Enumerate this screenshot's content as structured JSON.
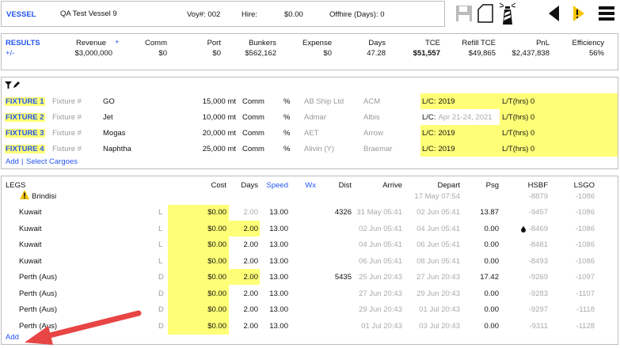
{
  "vessel": {
    "label": "VESSEL",
    "name": "QA Test Vessel 9",
    "voy": "Voy#: 002",
    "hire_label": "Hire:",
    "hire": "$0.00",
    "offhire": "Offhire (Days):  0"
  },
  "toolbar": {
    "icons": [
      "save-icon",
      "new-document-icon",
      "lighthouse-icon",
      "back-arrow-icon",
      "warning-next-icon",
      "menu-icon"
    ],
    "accent": "#f5c400"
  },
  "results": {
    "label": "RESULTS",
    "plusminus": "+/-",
    "cols": [
      {
        "h": "Revenue",
        "v": "$3,000,000"
      },
      {
        "h": "Comm",
        "v": "$0"
      },
      {
        "h": "Port",
        "v": "$0"
      },
      {
        "h": "Bunkers",
        "v": "$562,162"
      },
      {
        "h": "Expense",
        "v": "$0"
      },
      {
        "h": "Days",
        "v": "47.28"
      },
      {
        "h": "TCE",
        "v": "$51,557"
      },
      {
        "h": "Refill TCE",
        "v": "$49,865"
      },
      {
        "h": "PnL",
        "v": "$2,437,838"
      },
      {
        "h": "Efficiency",
        "v": "56%"
      }
    ],
    "revenue_plus": "+"
  },
  "fixtures": {
    "items": [
      {
        "label": "FIXTURE 1",
        "fixno": "Fixture #",
        "cargo": "GO",
        "qty": "15,000 mt",
        "comm": "Comm",
        "pct": "%",
        "charterer": "AB Ship Ltd",
        "broker": "ACM",
        "lc_label": "L/C:",
        "lc": "2019",
        "lt": "L/T(hrs)  0"
      },
      {
        "label": "FIXTURE 2",
        "fixno": "Fixture #",
        "cargo": "Jet",
        "qty": "10,000 mt",
        "comm": "Comm",
        "pct": "%",
        "charterer": "Admar",
        "broker": "Albis",
        "lc_label": "L/C:",
        "lc": "Apr 21-24, 2021",
        "lt": "L/T(hrs)  0"
      },
      {
        "label": "FIXTURE 3",
        "fixno": "Fixture #",
        "cargo": "Mogas",
        "qty": "20,000 mt",
        "comm": "Comm",
        "pct": "%",
        "charterer": "AET",
        "broker": "Arrow",
        "lc_label": "L/C:",
        "lc": "2019",
        "lt": "L/T(hrs)  0"
      },
      {
        "label": "FIXTURE 4",
        "fixno": "Fixture #",
        "cargo": "Naphtha",
        "qty": "25,000 mt",
        "comm": "Comm",
        "pct": "%",
        "charterer": "Alivin (Y)",
        "broker": "Braemar",
        "lc_label": "L/C:",
        "lc": "2019",
        "lt": "L/T(hrs)  0"
      }
    ],
    "add": "Add",
    "sep": "|",
    "select": "Select Cargoes"
  },
  "legs": {
    "title": "LEGS",
    "headers": {
      "cost": "Cost",
      "days": "Days",
      "speed": "Speed",
      "wx": "Wx",
      "dist": "Dist",
      "arrive": "Arrive",
      "depart": "Depart",
      "psg": "Psg",
      "hsbf": "HSBF",
      "lsgo": "LSGO"
    },
    "start": {
      "port": "Brindisi",
      "depart": "17 May 07:54",
      "hsbf": "-8879",
      "lsgo": "-1086"
    },
    "rows": [
      {
        "port": "Kuwait",
        "type": "L",
        "cost": "$0.00",
        "days": "2.00",
        "speed": "13.00",
        "dist": "4326",
        "arrive": "31 May 05:41",
        "depart": "02 Jun 05:41",
        "psg": "13.87",
        "hsbf": "-9457",
        "lsgo": "-1086"
      },
      {
        "port": "Kuwait",
        "type": "L",
        "cost": "$0.00",
        "days": "2.00",
        "speed": "13.00",
        "dist": "",
        "arrive": "02 Jun 05:41",
        "depart": "04 Jun 05:41",
        "psg": "0.00",
        "hsbf": "-8469",
        "lsgo": "-1086"
      },
      {
        "port": "Kuwait",
        "type": "L",
        "cost": "$0.00",
        "days": "2.00",
        "speed": "13.00",
        "dist": "",
        "arrive": "04 Jun 05:41",
        "depart": "06 Jun 05:41",
        "psg": "0.00",
        "hsbf": "-8481",
        "lsgo": "-1086"
      },
      {
        "port": "Kuwait",
        "type": "L",
        "cost": "$0.00",
        "days": "2.00",
        "speed": "13.00",
        "dist": "",
        "arrive": "06 Jun 05:41",
        "depart": "08 Jun 05:41",
        "psg": "0.00",
        "hsbf": "-8493",
        "lsgo": "-1086"
      },
      {
        "port": "Perth (Aus)",
        "type": "D",
        "cost": "$0.00",
        "days": "2.00",
        "speed": "13.00",
        "dist": "5435",
        "arrive": "25 Jun 20:43",
        "depart": "27 Jun 20:43",
        "psg": "17.42",
        "hsbf": "-9269",
        "lsgo": "-1097"
      },
      {
        "port": "Perth (Aus)",
        "type": "D",
        "cost": "$0.00",
        "days": "2.00",
        "speed": "13.00",
        "dist": "",
        "arrive": "27 Jun 20:43",
        "depart": "29 Jun 20:43",
        "psg": "0.00",
        "hsbf": "-9283",
        "lsgo": "-1107"
      },
      {
        "port": "Perth (Aus)",
        "type": "D",
        "cost": "$0.00",
        "days": "2.00",
        "speed": "13.00",
        "dist": "",
        "arrive": "29 Jun 20:43",
        "depart": "01 Jul 20:43",
        "psg": "0.00",
        "hsbf": "-9297",
        "lsgo": "-1118"
      },
      {
        "port": "Perth (Aus)",
        "type": "D",
        "cost": "$0.00",
        "days": "2.00",
        "speed": "13.00",
        "dist": "",
        "arrive": "01 Jul 20:43",
        "depart": "03 Jul 20:43",
        "psg": "0.00",
        "hsbf": "-9311",
        "lsgo": "-1128"
      }
    ],
    "add": "Add",
    "arrow_color": "#e84545",
    "highlight": "#ffff77"
  }
}
